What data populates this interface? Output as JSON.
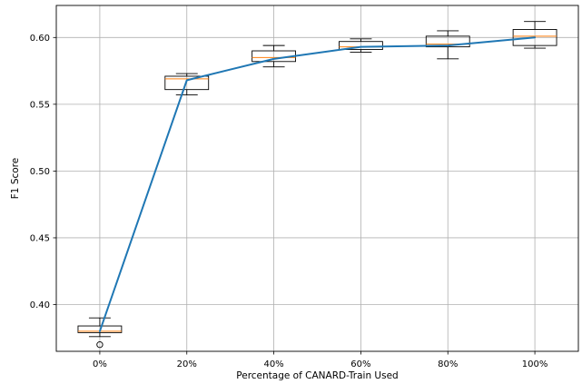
{
  "chart_data": {
    "type": "box",
    "title": "",
    "xlabel": "Percentage of CANARD-Train Used",
    "ylabel": "F1 Score",
    "categories": [
      "0%",
      "20%",
      "40%",
      "60%",
      "80%",
      "100%"
    ],
    "ylim": [
      0.365,
      0.624
    ],
    "yticks": [
      0.4,
      0.45,
      0.5,
      0.55,
      0.6
    ],
    "ytick_labels": [
      "0.40",
      "0.45",
      "0.50",
      "0.55",
      "0.60"
    ],
    "grid": true,
    "boxes": [
      {
        "category": "0%",
        "whisker_low": 0.376,
        "q1": 0.379,
        "median": 0.38,
        "q3": 0.384,
        "whisker_high": 0.39,
        "outliers": [
          0.37
        ]
      },
      {
        "category": "20%",
        "whisker_low": 0.557,
        "q1": 0.561,
        "median": 0.569,
        "q3": 0.571,
        "whisker_high": 0.573,
        "outliers": []
      },
      {
        "category": "40%",
        "whisker_low": 0.578,
        "q1": 0.582,
        "median": 0.585,
        "q3": 0.59,
        "whisker_high": 0.594,
        "outliers": []
      },
      {
        "category": "60%",
        "whisker_low": 0.589,
        "q1": 0.591,
        "median": 0.593,
        "q3": 0.597,
        "whisker_high": 0.599,
        "outliers": []
      },
      {
        "category": "80%",
        "whisker_low": 0.584,
        "q1": 0.593,
        "median": 0.595,
        "q3": 0.601,
        "whisker_high": 0.605,
        "outliers": []
      },
      {
        "category": "100%",
        "whisker_low": 0.592,
        "q1": 0.594,
        "median": 0.601,
        "q3": 0.606,
        "whisker_high": 0.612,
        "outliers": []
      }
    ],
    "series": [
      {
        "type": "line",
        "values": [
          0.38,
          0.568,
          0.584,
          0.593,
          0.594,
          0.6
        ]
      }
    ],
    "colors": {
      "line": "#1f77b4",
      "median": "#ff7f0e",
      "box": "#000000",
      "grid": "#b0b0b0"
    }
  }
}
